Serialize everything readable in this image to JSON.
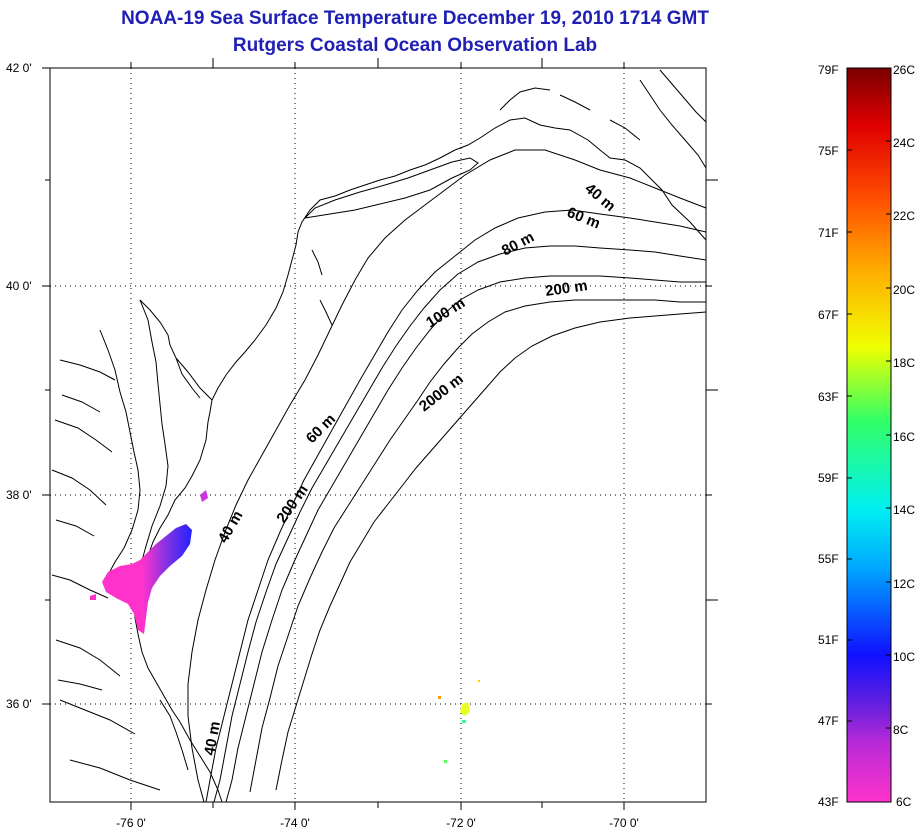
{
  "title": {
    "line1": "NOAA-19 Sea Surface Temperature December 19, 2010 1714 GMT",
    "line2": "Rutgers Coastal Ocean Observation Lab"
  },
  "map": {
    "lat_labels": [
      "42 0'",
      "40 0'",
      "38 0'",
      "36 0'"
    ],
    "lon_labels": [
      "-76 0'",
      "-74 0'",
      "-72 0'",
      "-70 0'"
    ],
    "depth_labels": [
      "40 m",
      "60 m",
      "80 m",
      "200 m",
      "100 m",
      "2000 m",
      "60 m",
      "40 m",
      "200 m",
      "40 m"
    ]
  },
  "colorbar": {
    "fahrenheit_labels": [
      "79F",
      "75F",
      "71F",
      "67F",
      "63F",
      "59F",
      "55F",
      "51F",
      "47F",
      "43F"
    ],
    "celsius_labels": [
      "26C",
      "24C",
      "22C",
      "20C",
      "18C",
      "16C",
      "14C",
      "12C",
      "10C",
      "8C",
      "6C"
    ],
    "colors": [
      "#ff33cc",
      "#7a22d8",
      "#1010ff",
      "#00a8ff",
      "#00f0f0",
      "#33ff66",
      "#f0ff00",
      "#ffb000",
      "#ff5000",
      "#e00000",
      "#7a0000"
    ]
  }
}
